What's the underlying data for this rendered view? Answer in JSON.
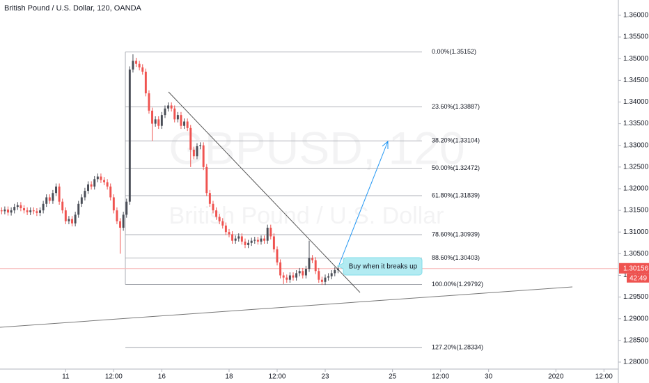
{
  "chart_data": {
    "type": "candlestick",
    "title": "British Pound / U.S. Dollar, 120, OANDA",
    "watermark_symbol": "GBPUSD, 120",
    "watermark_name": "British Pound / U.S. Dollar",
    "annotation": "Buy when it breaks up",
    "countdown": "42:49",
    "last_price": 1.30156,
    "up_color": "#4a4e57",
    "down_color": "#ef5350",
    "grid": false,
    "x": [
      0,
      1,
      2,
      3,
      4,
      5,
      6,
      7,
      8,
      9,
      10,
      11,
      12,
      13,
      14,
      15,
      16,
      17,
      18,
      19,
      20,
      21,
      22,
      23,
      24,
      25,
      26,
      27,
      28,
      29,
      30,
      31,
      32,
      33,
      34,
      35,
      36,
      37,
      38,
      39,
      40,
      41,
      42,
      43,
      44,
      45,
      46,
      47,
      48,
      49,
      50,
      51,
      52,
      53,
      54,
      55,
      56,
      57,
      58,
      59,
      60,
      61,
      62,
      63,
      64,
      65,
      66,
      67,
      68,
      69,
      70,
      71,
      72,
      73,
      74,
      75,
      76,
      77,
      78,
      79,
      80,
      81,
      82,
      83,
      84,
      85,
      86,
      87,
      88,
      89,
      90,
      91,
      92,
      93,
      94,
      95,
      96,
      97,
      98,
      99,
      100,
      101,
      102,
      103,
      104,
      105
    ],
    "open": [
      1.315,
      1.3148,
      1.3152,
      1.3145,
      1.315,
      1.3158,
      1.3162,
      1.3155,
      1.315,
      1.3146,
      1.315,
      1.3148,
      1.3144,
      1.315,
      1.3165,
      1.318,
      1.3172,
      1.319,
      1.3205,
      1.317,
      1.315,
      1.3125,
      1.313,
      1.312,
      1.314,
      1.3165,
      1.318,
      1.3195,
      1.321,
      1.3205,
      1.3222,
      1.3228,
      1.322,
      1.3215,
      1.3205,
      1.318,
      1.315,
      1.3125,
      1.311,
      1.314,
      1.317,
      1.3475,
      1.3495,
      1.3488,
      1.348,
      1.347,
      1.342,
      1.338,
      1.335,
      1.336,
      1.3345,
      1.337,
      1.3385,
      1.3392,
      1.3385,
      1.336,
      1.337,
      1.3345,
      1.3355,
      1.334,
      1.329,
      1.3275,
      1.3298,
      1.33,
      1.325,
      1.319,
      1.3165,
      1.315,
      1.3135,
      1.3125,
      1.3115,
      1.31,
      1.3095,
      1.308,
      1.3085,
      1.309,
      1.3078,
      1.307,
      1.3075,
      1.308,
      1.3082,
      1.3078,
      1.3085,
      1.308,
      1.311,
      1.309,
      1.306,
      1.303,
      1.3,
      1.2995,
      1.299,
      1.3,
      1.2995,
      1.3005,
      1.301,
      1.3,
      1.3015,
      1.304,
      1.3035,
      1.301,
      1.299,
      1.2985,
      1.2995,
      1.2998,
      1.3005,
      1.3012
    ],
    "high": [
      1.3157,
      1.3159,
      1.3159,
      1.3157,
      1.3165,
      1.3169,
      1.3169,
      1.3162,
      1.3157,
      1.3157,
      1.3157,
      1.3155,
      1.3157,
      1.3172,
      1.3187,
      1.3187,
      1.3197,
      1.3212,
      1.3212,
      1.3177,
      1.3157,
      1.3137,
      1.3137,
      1.3147,
      1.3172,
      1.3187,
      1.3202,
      1.3217,
      1.3217,
      1.3229,
      1.3235,
      1.3235,
      1.3227,
      1.3222,
      1.3212,
      1.3187,
      1.3157,
      1.3132,
      1.3147,
      1.3177,
      1.3482,
      1.351,
      1.3502,
      1.3495,
      1.3487,
      1.3477,
      1.3427,
      1.3387,
      1.3367,
      1.3367,
      1.3377,
      1.3392,
      1.3399,
      1.3399,
      1.3392,
      1.3377,
      1.3377,
      1.3362,
      1.3362,
      1.3347,
      1.3297,
      1.3305,
      1.3307,
      1.3307,
      1.3257,
      1.3197,
      1.3172,
      1.3157,
      1.3142,
      1.3132,
      1.3122,
      1.3107,
      1.3102,
      1.3092,
      1.3097,
      1.3097,
      1.3085,
      1.3082,
      1.3087,
      1.3089,
      1.3089,
      1.3092,
      1.3092,
      1.3117,
      1.3117,
      1.3097,
      1.3067,
      1.3037,
      1.3007,
      1.3002,
      1.3007,
      1.3007,
      1.3012,
      1.3017,
      1.3017,
      1.3022,
      1.308,
      1.3047,
      1.3042,
      1.3017,
      1.2997,
      1.3002,
      1.3005,
      1.3012,
      1.3019,
      1.3023
    ],
    "low": [
      1.3141,
      1.3141,
      1.3138,
      1.3138,
      1.3143,
      1.3151,
      1.3148,
      1.3143,
      1.3139,
      1.3139,
      1.3141,
      1.3137,
      1.3137,
      1.3143,
      1.3158,
      1.3165,
      1.3165,
      1.3183,
      1.3163,
      1.3143,
      1.3118,
      1.3118,
      1.3113,
      1.3113,
      1.3133,
      1.3158,
      1.3173,
      1.3188,
      1.3198,
      1.3198,
      1.3215,
      1.3213,
      1.3208,
      1.3198,
      1.3173,
      1.3143,
      1.3118,
      1.305,
      1.3103,
      1.3133,
      1.3163,
      1.3468,
      1.3481,
      1.3473,
      1.3463,
      1.3413,
      1.3373,
      1.331,
      1.3343,
      1.3338,
      1.3338,
      1.3363,
      1.3378,
      1.3378,
      1.3353,
      1.3353,
      1.3338,
      1.3338,
      1.3333,
      1.325,
      1.3268,
      1.3268,
      1.3291,
      1.3243,
      1.3183,
      1.3158,
      1.3143,
      1.3128,
      1.3118,
      1.3108,
      1.3093,
      1.3088,
      1.3073,
      1.3073,
      1.3078,
      1.3071,
      1.3063,
      1.3063,
      1.3068,
      1.3073,
      1.3071,
      1.3071,
      1.3073,
      1.3073,
      1.3083,
      1.3053,
      1.3023,
      1.2993,
      1.298,
      1.2983,
      1.2983,
      1.2988,
      1.2988,
      1.2998,
      1.2993,
      1.2993,
      1.3008,
      1.3028,
      1.3003,
      1.2983,
      1.2978,
      1.2978,
      1.2988,
      1.2991,
      1.2998,
      1.3005
    ],
    "close": [
      1.3148,
      1.3152,
      1.3145,
      1.315,
      1.3158,
      1.3162,
      1.3155,
      1.315,
      1.3146,
      1.315,
      1.3148,
      1.3144,
      1.315,
      1.3165,
      1.318,
      1.3172,
      1.319,
      1.3205,
      1.317,
      1.315,
      1.3125,
      1.313,
      1.312,
      1.314,
      1.3165,
      1.318,
      1.3195,
      1.321,
      1.3205,
      1.3222,
      1.3228,
      1.322,
      1.3215,
      1.3205,
      1.318,
      1.315,
      1.3125,
      1.311,
      1.314,
      1.317,
      1.3475,
      1.3495,
      1.3488,
      1.348,
      1.347,
      1.342,
      1.338,
      1.335,
      1.336,
      1.3345,
      1.337,
      1.3385,
      1.3392,
      1.3385,
      1.336,
      1.337,
      1.3345,
      1.3355,
      1.334,
      1.329,
      1.3275,
      1.3298,
      1.33,
      1.325,
      1.319,
      1.3165,
      1.315,
      1.3135,
      1.3125,
      1.3115,
      1.31,
      1.3095,
      1.308,
      1.3085,
      1.309,
      1.3078,
      1.307,
      1.3075,
      1.308,
      1.3082,
      1.3078,
      1.3085,
      1.308,
      1.311,
      1.309,
      1.306,
      1.303,
      1.3,
      1.2995,
      1.299,
      1.3,
      1.2995,
      1.3005,
      1.301,
      1.3,
      1.3015,
      1.304,
      1.3035,
      1.301,
      1.299,
      1.2985,
      1.2995,
      1.2998,
      1.3005,
      1.3012,
      1.3016
    ],
    "xlim": [
      -0.5,
      192.5
    ],
    "xticks": [
      {
        "value": 20,
        "label": "11"
      },
      {
        "value": 35,
        "label": "12:00"
      },
      {
        "value": 50,
        "label": "16"
      },
      {
        "value": 71,
        "label": "18"
      },
      {
        "value": 86,
        "label": "12:00"
      },
      {
        "value": 101,
        "label": "23"
      },
      {
        "value": 122,
        "label": "25"
      },
      {
        "value": 137,
        "label": "12:00"
      },
      {
        "value": 152,
        "label": "30"
      },
      {
        "value": 173,
        "label": "2020"
      },
      {
        "value": 188,
        "label": "12:00"
      }
    ],
    "ylim": [
      1.27839,
      1.36353
    ],
    "yticks": [
      {
        "value": 1.28,
        "label": "1.28000"
      },
      {
        "value": 1.285,
        "label": "1.28500"
      },
      {
        "value": 1.29,
        "label": "1.29000"
      },
      {
        "value": 1.295,
        "label": "1.29500"
      },
      {
        "value": 1.3,
        "label": "1.30000"
      },
      {
        "value": 1.305,
        "label": "1.30500"
      },
      {
        "value": 1.31,
        "label": "1.31000"
      },
      {
        "value": 1.315,
        "label": "1.31500"
      },
      {
        "value": 1.32,
        "label": "1.32000"
      },
      {
        "value": 1.325,
        "label": "1.32500"
      },
      {
        "value": 1.33,
        "label": "1.33000"
      },
      {
        "value": 1.335,
        "label": "1.33500"
      },
      {
        "value": 1.34,
        "label": "1.34000"
      },
      {
        "value": 1.345,
        "label": "1.34500"
      },
      {
        "value": 1.35,
        "label": "1.35000"
      },
      {
        "value": 1.355,
        "label": "1.35500"
      },
      {
        "value": 1.36,
        "label": "1.36000"
      }
    ],
    "fib_levels": [
      {
        "label": "0.00%(1.35152)",
        "price": 1.35152
      },
      {
        "label": "23.60%(1.33887)",
        "price": 1.33887
      },
      {
        "label": "38.20%(1.33104)",
        "price": 1.33104
      },
      {
        "label": "50.00%(1.32472)",
        "price": 1.32472
      },
      {
        "label": "61.80%(1.31839)",
        "price": 1.31839
      },
      {
        "label": "78.60%(1.30939)",
        "price": 1.30939
      },
      {
        "label": "88.60%(1.30403)",
        "price": 1.30403
      },
      {
        "label": "100.00%(1.29792)",
        "price": 1.29792
      },
      {
        "label": "127.20%(1.28334)",
        "price": 1.28334
      }
    ]
  }
}
